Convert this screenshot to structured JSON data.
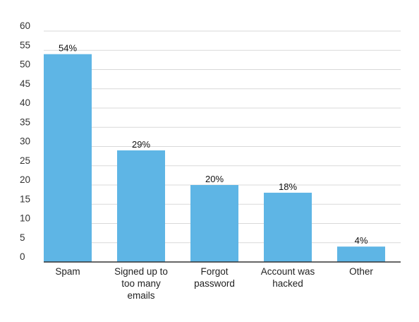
{
  "chart_data": {
    "type": "bar",
    "categories": [
      [
        "Spam"
      ],
      [
        "Signed up to",
        "too many",
        "emails"
      ],
      [
        "Forgot",
        "password"
      ],
      [
        "Account was",
        "hacked"
      ],
      [
        "Other"
      ]
    ],
    "values": [
      54,
      29,
      20,
      18,
      4
    ],
    "data_labels": [
      "54%",
      "29%",
      "20%",
      "18%",
      "4%"
    ],
    "title": "",
    "xlabel": "",
    "ylabel": "",
    "ylim": [
      0,
      60
    ],
    "yticks": [
      "0",
      "5",
      "10",
      "15",
      "20",
      "25",
      "30",
      "35",
      "40",
      "45",
      "50",
      "55",
      "60"
    ],
    "grid": true,
    "legend": "none",
    "bar_color": "#5eb5e5"
  }
}
